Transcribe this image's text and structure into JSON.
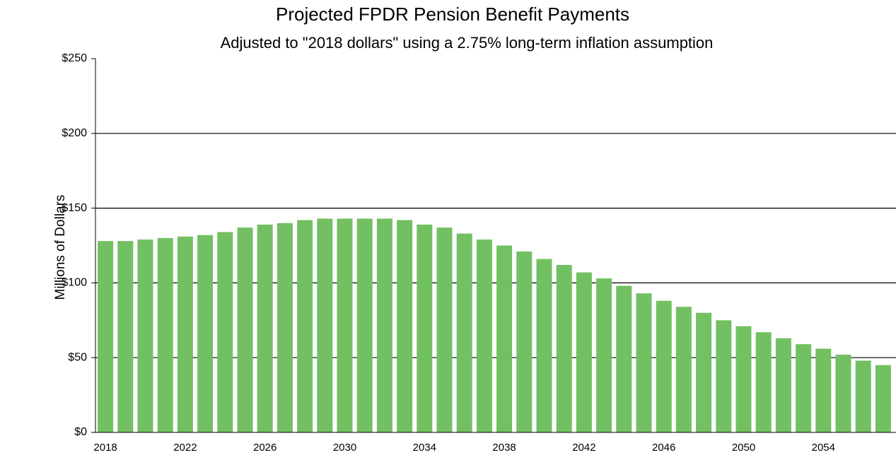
{
  "chart_data": {
    "type": "bar",
    "title": "Projected FPDR Pension Benefit Payments",
    "subtitle": "Adjusted to \"2018 dollars\" using a 2.75% long-term inflation assumption",
    "y_label": "Millions of Dollars",
    "categories": [
      "2018",
      null,
      null,
      null,
      "2022",
      null,
      null,
      null,
      "2026",
      null,
      null,
      null,
      "2030",
      null,
      null,
      null,
      "2034",
      null,
      null,
      null,
      "2038",
      null,
      null,
      null,
      "2042",
      null,
      null,
      null,
      "2046",
      null,
      null,
      null,
      "2050",
      null,
      null,
      null,
      "2054",
      null,
      null,
      null
    ],
    "values": [
      128,
      128,
      129,
      130,
      131,
      132,
      134,
      137,
      139,
      140,
      142,
      143,
      143,
      143,
      143,
      142,
      139,
      137,
      133,
      129,
      125,
      121,
      116,
      112,
      107,
      103,
      98,
      93,
      88,
      84,
      80,
      75,
      71,
      67,
      63,
      59,
      56,
      52,
      48,
      45
    ],
    "color": "#72c062",
    "ylim": [
      0,
      250
    ],
    "yticks": [
      {
        "value": 0,
        "label": "$0"
      },
      {
        "value": 50,
        "label": "$50"
      },
      {
        "value": 100,
        "label": "$100"
      },
      {
        "value": 150,
        "label": "$150"
      },
      {
        "value": 200,
        "label": "$200"
      },
      {
        "value": 250,
        "label": "$250"
      }
    ],
    "grid": true
  }
}
